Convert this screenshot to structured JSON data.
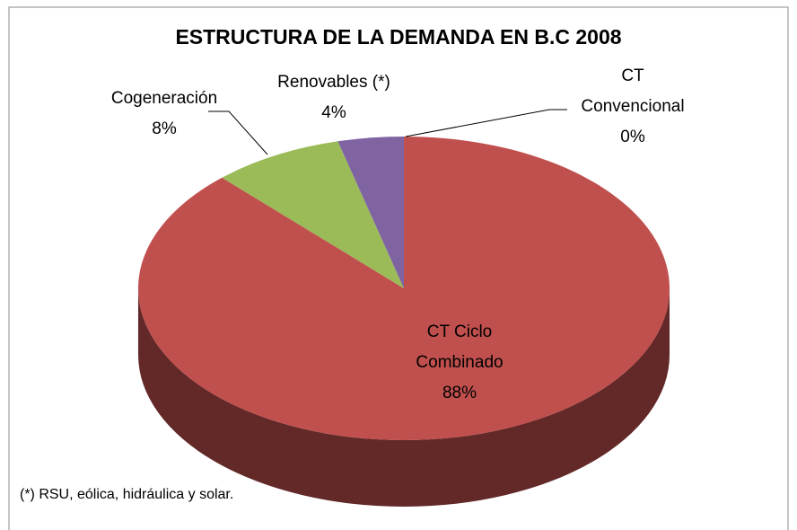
{
  "chart_data": {
    "type": "pie",
    "title": "ESTRUCTURA DE LA DEMANDA EN B.C 2008",
    "categories": [
      "CT Convencional",
      "CT Ciclo Combinado",
      "Cogeneración",
      "Renovables (*)"
    ],
    "values": [
      0,
      88,
      8,
      4
    ],
    "value_labels": [
      "0%",
      "88%",
      "8%",
      "4%"
    ],
    "colors": [
      "#4f81bd",
      "#c0504d",
      "#9bbb59",
      "#8064a2"
    ],
    "side_colors": [
      "#2c4a6e",
      "#632828",
      "#56692f",
      "#46375a"
    ],
    "annotation": "(*) RSU, eólica, hidráulica y solar."
  }
}
